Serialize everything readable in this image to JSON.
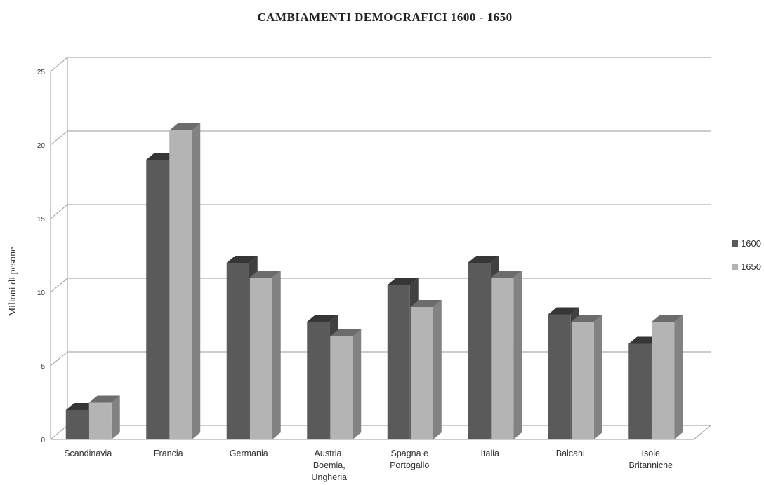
{
  "chart_data": {
    "type": "bar",
    "title": "CAMBIAMENTI DEMOGRAFICI 1600 - 1650",
    "ylabel": "Milioni di pesone",
    "xlabel": "",
    "ylim": [
      0,
      25
    ],
    "yticks": [
      "0",
      "5",
      "10",
      "15",
      "20",
      "25"
    ],
    "grid": true,
    "legend_position": "right",
    "categories": [
      [
        "Scandinavia"
      ],
      [
        "Francia"
      ],
      [
        "Germania"
      ],
      [
        "Austria,",
        "Boemia,",
        "Ungheria"
      ],
      [
        "Spagna e",
        "Portogallo"
      ],
      [
        "Italia"
      ],
      [
        "Balcani"
      ],
      [
        "Isole",
        "Britanniche"
      ]
    ],
    "series": [
      {
        "name": "1600",
        "color": "#5a5a5a",
        "values": [
          2,
          19,
          12,
          8,
          10.5,
          12,
          8.5,
          6.5
        ]
      },
      {
        "name": "1650",
        "color": "#b4b4b4",
        "values": [
          2.5,
          21,
          11,
          7,
          9,
          11,
          8,
          8
        ]
      }
    ]
  }
}
